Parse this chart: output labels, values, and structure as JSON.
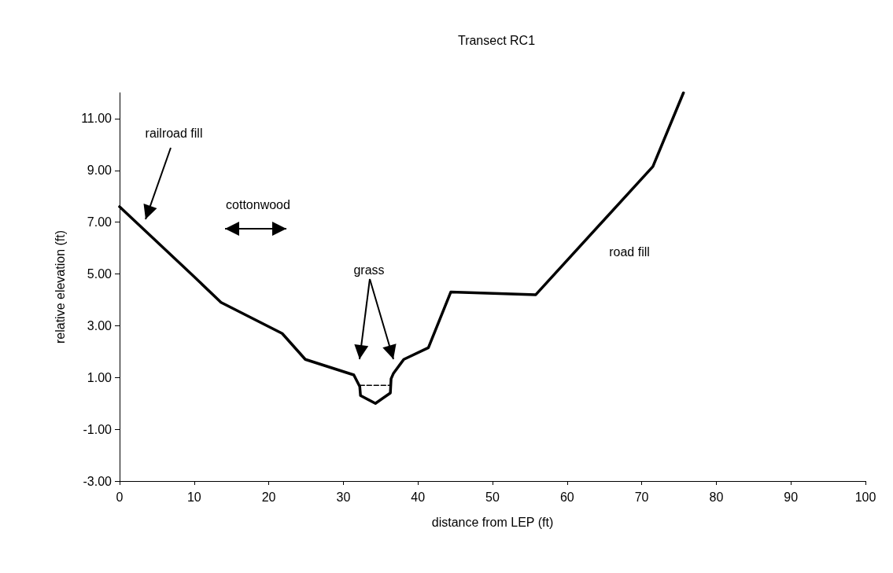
{
  "chart_data": {
    "type": "line",
    "title": "Transect RC1",
    "xlabel": "distance from LEP (ft)",
    "ylabel": "relative elevation (ft)",
    "series": [
      {
        "color": "#000000",
        "line_style": "solid",
        "x": [
          0,
          9.6,
          13.6,
          21.8,
          24.9,
          31.4,
          32.2,
          32.3,
          34.3,
          36.3,
          36.4,
          36.7,
          38.1,
          41.4,
          44.4,
          55.8,
          71.5,
          75.6
        ],
        "values": [
          7.6,
          5.0,
          3.9,
          2.7,
          1.7,
          1.1,
          0.65,
          0.3,
          0.0,
          0.4,
          0.95,
          1.15,
          1.7,
          2.15,
          4.3,
          4.2,
          9.15,
          12.0
        ]
      },
      {
        "color": "#000000",
        "line_style": "dashed",
        "x": [
          32.2,
          36.4
        ],
        "values": [
          0.7,
          0.7
        ]
      }
    ],
    "xlim": [
      0,
      100
    ],
    "xticks": [
      0,
      10,
      20,
      30,
      40,
      50,
      60,
      70,
      80,
      90,
      100
    ],
    "ylim": [
      -3,
      12
    ],
    "yticks": [
      {
        "value": -3,
        "label": "-3.00"
      },
      {
        "value": -1,
        "label": "-1.00"
      },
      {
        "value": 1,
        "label": "1.00"
      },
      {
        "value": 3,
        "label": "3.00"
      },
      {
        "value": 5,
        "label": "5.00"
      },
      {
        "value": 7,
        "label": "7.00"
      },
      {
        "value": 9,
        "label": "9.00"
      },
      {
        "value": 11,
        "label": "11.00"
      }
    ],
    "grid": false,
    "marker": "none",
    "annotations": [
      "railroad fill",
      "cottonwood",
      "grass",
      "road fill"
    ]
  }
}
